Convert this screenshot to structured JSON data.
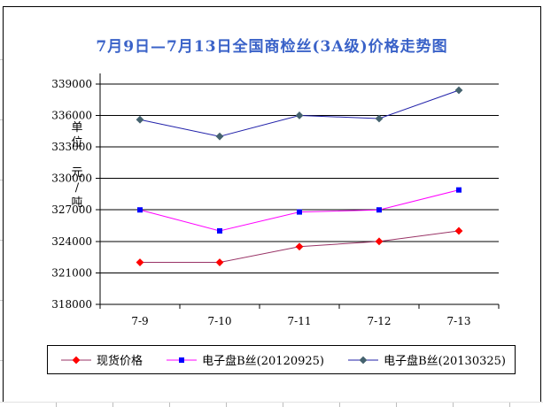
{
  "chart_data": {
    "type": "line",
    "title": "7月9日—7月13日全国商检丝(3A级)价格走势图",
    "title_color": "#3a62c8",
    "y_axis_unit_label": "单\n位\n\n元\n/\n吨",
    "categories": [
      "7-9",
      "7-10",
      "7-11",
      "7-12",
      "7-13"
    ],
    "y_ticks": [
      318000,
      321000,
      324000,
      327000,
      330000,
      333000,
      336000,
      339000
    ],
    "ylim": [
      318000,
      340000
    ],
    "grid": true,
    "legend_position": "bottom",
    "axis_color": "#000000",
    "series": [
      {
        "name": "现货价格",
        "values": [
          322000,
          322000,
          323500,
          324000,
          325000
        ],
        "line_color": "#993366",
        "marker": "diamond",
        "marker_color": "#ff0000"
      },
      {
        "name": "电子盘B丝(20120925)",
        "values": [
          327000,
          325000,
          326800,
          327000,
          328900
        ],
        "line_color": "#ff00ff",
        "marker": "square",
        "marker_color": "#0000ff"
      },
      {
        "name": "电子盘B丝(20130325)",
        "values": [
          335600,
          334000,
          336000,
          335700,
          338400
        ],
        "line_color": "#2222aa",
        "marker": "diamond",
        "marker_color": "#44626e"
      }
    ]
  }
}
